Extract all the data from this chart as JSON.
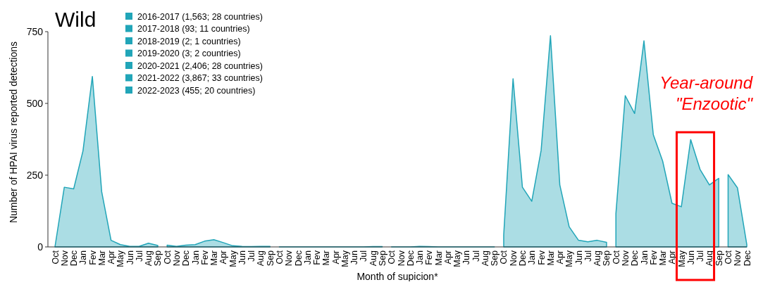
{
  "chart_data": {
    "type": "area",
    "title": "Wild",
    "ylabel": "Number of HPAI virus reported detections",
    "xlabel": "Month of supicion*",
    "categories": [
      "Oct",
      "Nov",
      "Dec",
      "Jan",
      "Fev",
      "Mar",
      "Apr",
      "May",
      "Jun",
      "Jul",
      "Aug",
      "Sep",
      "Oct",
      "Nov",
      "Dec",
      "Jan",
      "Fev",
      "Mar",
      "Apr",
      "May",
      "Jun",
      "Jul",
      "Aug",
      "Sep",
      "Oct",
      "Nov",
      "Dec",
      "Jan",
      "Fev",
      "Mar",
      "Apr",
      "May",
      "Jun",
      "Jul",
      "Aug",
      "Sep",
      "Oct",
      "Nov",
      "Dec",
      "Jan",
      "Fev",
      "Mar",
      "Apr",
      "May",
      "Jun",
      "Jul",
      "Aug",
      "Sep",
      "Oct",
      "Nov",
      "Dec",
      "Jan",
      "Fev",
      "Mar",
      "Apr",
      "May",
      "Jun",
      "Jul",
      "Aug",
      "Sep",
      "Oct",
      "Nov",
      "Dec",
      "Jan",
      "Fev",
      "Mar",
      "Apr",
      "May",
      "Jun",
      "Jul",
      "Aug",
      "Sep",
      "Oct",
      "Nov",
      "Dec"
    ],
    "series": [
      {
        "name": "2016-2017 (1,563; 28 countries)",
        "color": "#21a5b8",
        "values": [
          0,
          208,
          202,
          335,
          594,
          192,
          23,
          8,
          2,
          2,
          13,
          5,
          null,
          null,
          null,
          null,
          null,
          null,
          null,
          null,
          null,
          null,
          null,
          null,
          null,
          null,
          null,
          null,
          null,
          null,
          null,
          null,
          null,
          null,
          null,
          null,
          null,
          null,
          null,
          null,
          null,
          null,
          null,
          null,
          null,
          null,
          null,
          null,
          null,
          null,
          null,
          null,
          null,
          null,
          null,
          null,
          null,
          null,
          null,
          null,
          null,
          null,
          null,
          null,
          null,
          null,
          null,
          null,
          null,
          null,
          null,
          null,
          null,
          null,
          null
        ]
      },
      {
        "name": "2017-2018 (93; 11 countries)",
        "color": "#21a5b8",
        "values": [
          null,
          null,
          null,
          null,
          null,
          null,
          null,
          null,
          null,
          null,
          null,
          null,
          6,
          2,
          6,
          8,
          20,
          25,
          15,
          4,
          2,
          1,
          2,
          2,
          null,
          null,
          null,
          null,
          null,
          null,
          null,
          null,
          null,
          null,
          null,
          null,
          null,
          null,
          null,
          null,
          null,
          null,
          null,
          null,
          null,
          null,
          null,
          null,
          null,
          null,
          null,
          null,
          null,
          null,
          null,
          null,
          null,
          null,
          null,
          null,
          null,
          null,
          null,
          null,
          null,
          null,
          null,
          null,
          null,
          null,
          null,
          null,
          null,
          null,
          null
        ]
      },
      {
        "name": "2018-2019 (2; 1 countries)",
        "color": "#21a5b8",
        "values": [
          null,
          null,
          null,
          null,
          null,
          null,
          null,
          null,
          null,
          null,
          null,
          null,
          null,
          null,
          null,
          null,
          null,
          null,
          null,
          null,
          null,
          null,
          null,
          null,
          0,
          0,
          0,
          0,
          0,
          0,
          0,
          0,
          0,
          0,
          1,
          1,
          null,
          null,
          null,
          null,
          null,
          null,
          null,
          null,
          null,
          null,
          null,
          null,
          null,
          null,
          null,
          null,
          null,
          null,
          null,
          null,
          null,
          null,
          null,
          null,
          null,
          null,
          null,
          null,
          null,
          null,
          null,
          null,
          null,
          null,
          null,
          null,
          null,
          null,
          null
        ]
      },
      {
        "name": "2019-2020 (3; 2 countries)",
        "color": "#21a5b8",
        "values": [
          null,
          null,
          null,
          null,
          null,
          null,
          null,
          null,
          null,
          null,
          null,
          null,
          null,
          null,
          null,
          null,
          null,
          null,
          null,
          null,
          null,
          null,
          null,
          null,
          null,
          null,
          null,
          null,
          null,
          null,
          null,
          null,
          null,
          null,
          null,
          null,
          0,
          0,
          0,
          2,
          1,
          0,
          0,
          0,
          0,
          0,
          0,
          0,
          null,
          null,
          null,
          null,
          null,
          null,
          null,
          null,
          null,
          null,
          null,
          null,
          null,
          null,
          null,
          null,
          null,
          null,
          null,
          null,
          null,
          null,
          null,
          null,
          null,
          null,
          null
        ]
      },
      {
        "name": "2020-2021 (2,406; 28 countries)",
        "color": "#21a5b8",
        "values": [
          null,
          null,
          null,
          null,
          null,
          null,
          null,
          null,
          null,
          null,
          null,
          null,
          null,
          null,
          null,
          null,
          null,
          null,
          null,
          null,
          null,
          null,
          null,
          null,
          null,
          null,
          null,
          null,
          null,
          null,
          null,
          null,
          null,
          null,
          null,
          null,
          null,
          null,
          null,
          null,
          null,
          null,
          null,
          null,
          null,
          null,
          null,
          null,
          42,
          586,
          208,
          159,
          336,
          736,
          216,
          70,
          23,
          18,
          23,
          16,
          null,
          null,
          null,
          null,
          null,
          null,
          null,
          null,
          null,
          null,
          null,
          null,
          null,
          null,
          null
        ]
      },
      {
        "name": "2021-2022 (3,867; 33 countries)",
        "color": "#21a5b8",
        "values": [
          null,
          null,
          null,
          null,
          null,
          null,
          null,
          null,
          null,
          null,
          null,
          null,
          null,
          null,
          null,
          null,
          null,
          null,
          null,
          null,
          null,
          null,
          null,
          null,
          null,
          null,
          null,
          null,
          null,
          null,
          null,
          null,
          null,
          null,
          null,
          null,
          null,
          null,
          null,
          null,
          null,
          null,
          null,
          null,
          null,
          null,
          null,
          null,
          null,
          null,
          null,
          null,
          null,
          null,
          null,
          null,
          null,
          null,
          null,
          null,
          116,
          527,
          465,
          718,
          391,
          299,
          152,
          140,
          374,
          270,
          216,
          239,
          null,
          null,
          null
        ]
      },
      {
        "name": "2022-2023 (455; 20 countries)",
        "color": "#21a5b8",
        "values": [
          null,
          null,
          null,
          null,
          null,
          null,
          null,
          null,
          null,
          null,
          null,
          null,
          null,
          null,
          null,
          null,
          null,
          null,
          null,
          null,
          null,
          null,
          null,
          null,
          null,
          null,
          null,
          null,
          null,
          null,
          null,
          null,
          null,
          null,
          null,
          null,
          null,
          null,
          null,
          null,
          null,
          null,
          null,
          null,
          null,
          null,
          null,
          null,
          null,
          null,
          null,
          null,
          null,
          null,
          null,
          null,
          null,
          null,
          null,
          null,
          null,
          null,
          null,
          null,
          null,
          null,
          null,
          null,
          null,
          null,
          null,
          null,
          252,
          206,
          8
        ]
      }
    ],
    "ylim": [
      0,
      750
    ],
    "yticks": [
      0,
      250,
      500,
      750
    ],
    "grid": false,
    "legend": "top left",
    "annotations": [
      "Year-around",
      "\"Enzootic\""
    ]
  }
}
